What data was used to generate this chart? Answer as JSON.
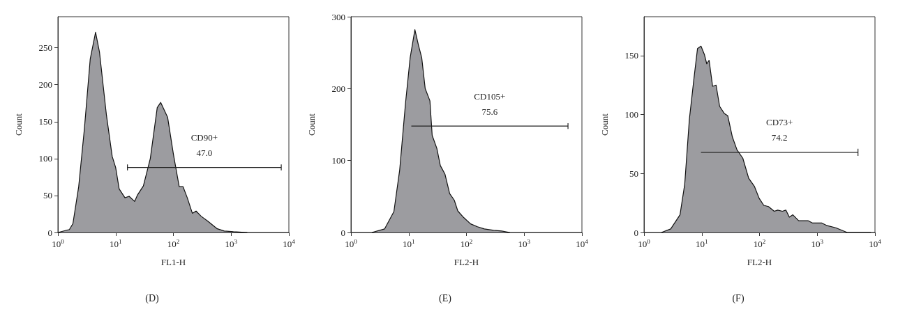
{
  "chart_data": [
    {
      "type": "area",
      "title": "(D)",
      "xlabel": "FL1-H",
      "ylabel": "Count",
      "log": "x",
      "marker": "none",
      "line_style": "solid",
      "series": [
        {
          "color": "#9c9ca0",
          "x": [
            1,
            1.58,
            1.82,
            2.29,
            2.88,
            3.63,
            4.49,
            5.25,
            6.92,
            8.71,
            10,
            11.5,
            14.5,
            17.1,
            21.3,
            24,
            30.2,
            39.8,
            52.5,
            60.3,
            79.4,
            100,
            126,
            147,
            174,
            213,
            247,
            302,
            398,
            575,
            759,
            1096,
            1905
          ],
          "values": [
            0,
            4,
            12,
            62,
            141,
            235,
            271,
            244,
            159,
            103,
            88,
            59,
            47,
            49,
            42,
            51,
            63,
            100,
            169,
            176,
            156,
            106,
            62,
            62,
            47,
            26,
            29,
            22,
            15,
            5,
            2,
            1,
            0
          ]
        },
        {
          "type": "line",
          "color": "#222222",
          "x": [
            16,
            7380
          ],
          "values": [
            88,
            88
          ],
          "errors": [
            4,
            4
          ]
        }
      ],
      "xlim": [
        1,
        10000
      ],
      "xticks": [
        {
          "value": 1,
          "label": "10$^{0}$"
        },
        {
          "value": 10,
          "label": "10$^{1}$"
        },
        {
          "value": 100,
          "label": "10$^{2}$"
        },
        {
          "value": 1000,
          "label": "10$^{3}$"
        },
        {
          "value": 10000,
          "label": "10$^{4}$"
        }
      ],
      "ylim": [
        0,
        292
      ],
      "yticks": [
        0,
        50,
        100,
        150,
        200,
        250
      ],
      "annotations": [
        "CD90+\n47.0"
      ]
    },
    {
      "type": "area",
      "title": "(E)",
      "xlabel": "FL2-H",
      "ylabel": "Count",
      "log": "x",
      "marker": "none",
      "line_style": "solid",
      "series": [
        {
          "color": "#9c9ca0",
          "x": [
            2.3,
            3.83,
            5.54,
            6.98,
            8.81,
            10.6,
            12.8,
            14.7,
            16.8,
            19.3,
            23.3,
            25.5,
            30.7,
            35.3,
            42.5,
            51.2,
            61.5,
            70.8,
            89,
            118,
            155,
            204,
            295,
            407,
            565
          ],
          "values": [
            0,
            5,
            29,
            87,
            180,
            243,
            282,
            261,
            243,
            200,
            183,
            135,
            117,
            93,
            81,
            54,
            45,
            30,
            21,
            12,
            8,
            5,
            3,
            2,
            0
          ]
        },
        {
          "type": "line",
          "color": "#222222",
          "x": [
            11.1,
            5740
          ],
          "values": [
            148,
            148
          ],
          "errors": [
            4,
            4
          ]
        }
      ],
      "xlim": [
        1,
        10000
      ],
      "xticks": [
        {
          "value": 1,
          "label": "10$^{0}$"
        },
        {
          "value": 10,
          "label": "10$^{1}$"
        },
        {
          "value": 100,
          "label": "10$^{2}$"
        },
        {
          "value": 1000,
          "label": "10$^{3}$"
        },
        {
          "value": 10000,
          "label": "10$^{4}$"
        }
      ],
      "ylim": [
        0,
        300
      ],
      "yticks": [
        0,
        100,
        200,
        300
      ],
      "annotations": [
        "CD105+\n75.6"
      ]
    },
    {
      "type": "area",
      "title": "(F)",
      "xlabel": "FL2-H",
      "ylabel": "Count",
      "log": "x",
      "marker": "none",
      "line_style": "solid",
      "series": [
        {
          "color": "#9c9ca0",
          "x": [
            2,
            2.9,
            4.2,
            5.07,
            6.1,
            7.34,
            8.44,
            9.7,
            11.1,
            12.2,
            13.4,
            15.4,
            17.7,
            20.4,
            24.5,
            28.2,
            33.9,
            40.8,
            51.4,
            65,
            81.9,
            98.6,
            118.6,
            142.9,
            180,
            207,
            249,
            286,
            329,
            378,
            477,
            692,
            832,
            1202,
            1446,
            2094,
            3311,
            8510
          ],
          "values": [
            0,
            3,
            15,
            41,
            96,
            131,
            156,
            158,
            151,
            143,
            146,
            124,
            125,
            107,
            101,
            99,
            81,
            70,
            63,
            46,
            39,
            29,
            23,
            22,
            18,
            19,
            18,
            19,
            13,
            15,
            10,
            10,
            8,
            8,
            6,
            4,
            0,
            0
          ]
        },
        {
          "type": "line",
          "color": "#222222",
          "x": [
            9.7,
            5080
          ],
          "values": [
            68,
            68
          ],
          "errors": [
            3,
            3
          ]
        }
      ],
      "xlim": [
        1,
        10000
      ],
      "xticks": [
        {
          "value": 1,
          "label": "10$^{0}$"
        },
        {
          "value": 10,
          "label": "10$^{1}$"
        },
        {
          "value": 100,
          "label": "10$^{2}$"
        },
        {
          "value": 1000,
          "label": "10$^{3}$"
        },
        {
          "value": 10000,
          "label": "10$^{4}$"
        }
      ],
      "ylim": [
        0,
        183
      ],
      "yticks": [
        0,
        50,
        100,
        150
      ],
      "annotations": [
        "CD73+\n74.2"
      ]
    }
  ]
}
